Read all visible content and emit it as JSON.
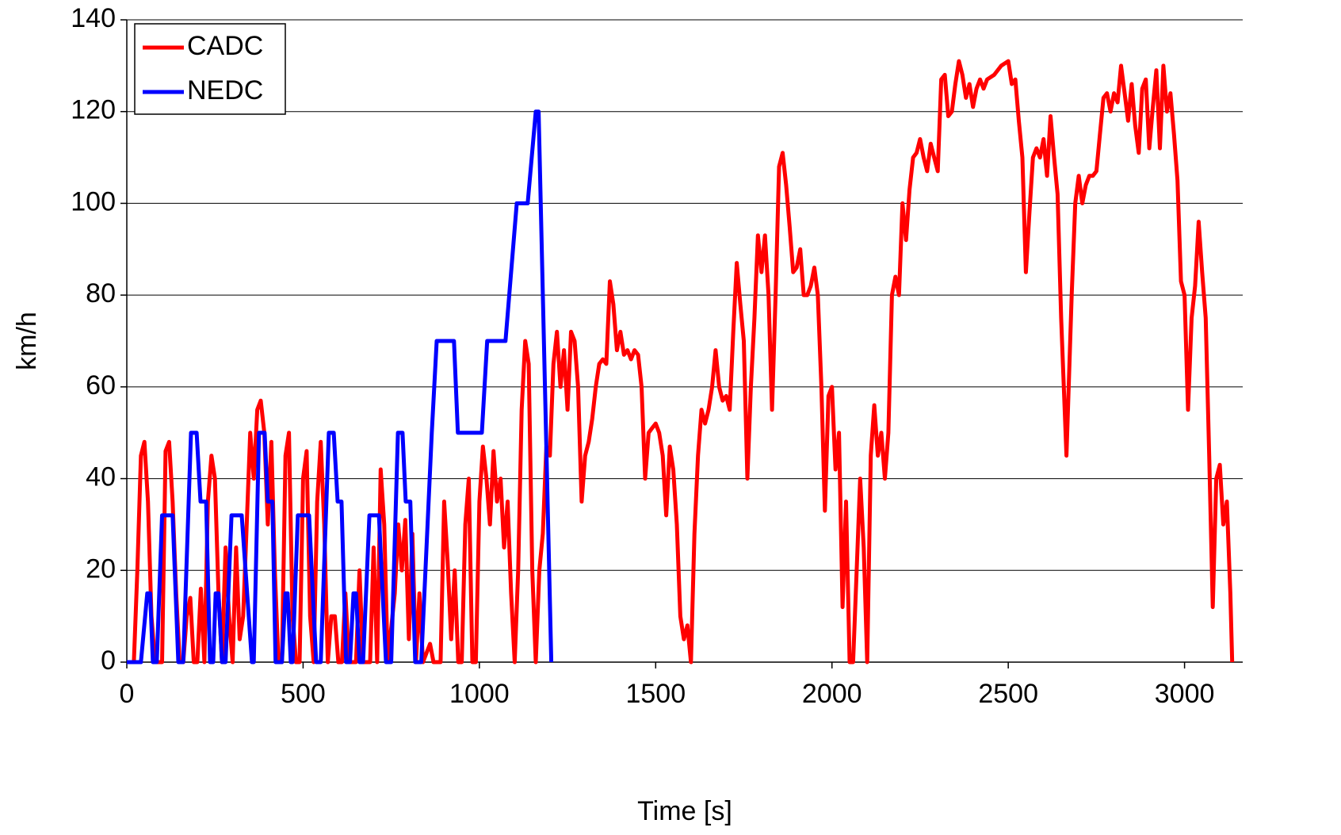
{
  "chart_data": {
    "type": "line",
    "xlabel": "Time [s]",
    "ylabel": "km/h",
    "xlim": [
      0,
      3165
    ],
    "xticks": [
      0,
      500,
      1000,
      1500,
      2000,
      2500,
      3000
    ],
    "ylim": [
      0,
      140
    ],
    "yticks": [
      0,
      20,
      40,
      60,
      80,
      100,
      120,
      140
    ],
    "grid": true,
    "legend": "upper left",
    "series": [
      {
        "name": "CADC",
        "color": "#ff0000",
        "x": [
          0,
          20,
          30,
          40,
          50,
          60,
          70,
          80,
          100,
          110,
          120,
          130,
          140,
          150,
          160,
          170,
          180,
          190,
          200,
          210,
          220,
          230,
          240,
          250,
          260,
          270,
          280,
          290,
          300,
          310,
          320,
          330,
          340,
          350,
          360,
          370,
          380,
          390,
          400,
          410,
          420,
          430,
          440,
          450,
          460,
          470,
          480,
          490,
          500,
          510,
          520,
          530,
          540,
          550,
          560,
          570,
          580,
          590,
          600,
          610,
          620,
          630,
          650,
          660,
          670,
          690,
          700,
          710,
          720,
          730,
          740,
          760,
          770,
          780,
          790,
          800,
          810,
          820,
          830,
          840,
          860,
          870,
          890,
          900,
          910,
          920,
          930,
          940,
          950,
          960,
          970,
          980,
          990,
          1000,
          1010,
          1020,
          1030,
          1040,
          1050,
          1060,
          1070,
          1080,
          1090,
          1100,
          1110,
          1120,
          1130,
          1140,
          1150,
          1160,
          1170,
          1180,
          1190,
          1200,
          1210,
          1220,
          1230,
          1240,
          1250,
          1260,
          1270,
          1280,
          1290,
          1300,
          1310,
          1320,
          1330,
          1340,
          1350,
          1360,
          1370,
          1380,
          1390,
          1400,
          1410,
          1420,
          1430,
          1440,
          1450,
          1460,
          1470,
          1480,
          1490,
          1500,
          1510,
          1520,
          1530,
          1540,
          1550,
          1560,
          1570,
          1580,
          1590,
          1600,
          1610,
          1620,
          1630,
          1640,
          1650,
          1660,
          1670,
          1680,
          1690,
          1700,
          1710,
          1720,
          1730,
          1740,
          1750,
          1760,
          1770,
          1780,
          1790,
          1800,
          1810,
          1820,
          1830,
          1840,
          1850,
          1860,
          1870,
          1880,
          1890,
          1900,
          1910,
          1920,
          1930,
          1940,
          1950,
          1960,
          1970,
          1980,
          1990,
          2000,
          2010,
          2020,
          2030,
          2040,
          2050,
          2060,
          2070,
          2080,
          2090,
          2100,
          2110,
          2120,
          2130,
          2140,
          2150,
          2160,
          2170,
          2180,
          2190,
          2200,
          2210,
          2220,
          2230,
          2240,
          2250,
          2260,
          2270,
          2280,
          2290,
          2300,
          2310,
          2320,
          2330,
          2340,
          2350,
          2360,
          2370,
          2380,
          2390,
          2400,
          2410,
          2420,
          2430,
          2440,
          2460,
          2480,
          2500,
          2510,
          2520,
          2530,
          2540,
          2550,
          2560,
          2570,
          2580,
          2590,
          2600,
          2610,
          2620,
          2630,
          2640,
          2650,
          2665,
          2680,
          2690,
          2700,
          2710,
          2720,
          2730,
          2740,
          2750,
          2760,
          2770,
          2780,
          2790,
          2800,
          2810,
          2820,
          2830,
          2840,
          2850,
          2860,
          2870,
          2880,
          2890,
          2900,
          2910,
          2920,
          2930,
          2940,
          2950,
          2960,
          2970,
          2980,
          2990,
          3000,
          3010,
          3020,
          3030,
          3040,
          3050,
          3060,
          3070,
          3080,
          3090,
          3100,
          3110,
          3120,
          3130,
          3135
        ],
        "values": [
          0,
          0,
          20,
          45,
          48,
          35,
          10,
          0,
          0,
          46,
          48,
          35,
          15,
          0,
          0,
          10,
          14,
          0,
          0,
          16,
          0,
          35,
          45,
          40,
          15,
          0,
          25,
          10,
          0,
          25,
          5,
          10,
          30,
          50,
          40,
          55,
          57,
          50,
          30,
          48,
          20,
          0,
          0,
          45,
          50,
          10,
          0,
          0,
          40,
          46,
          10,
          0,
          35,
          48,
          30,
          0,
          10,
          10,
          0,
          0,
          15,
          0,
          0,
          20,
          0,
          0,
          25,
          0,
          42,
          30,
          0,
          15,
          30,
          20,
          31,
          5,
          28,
          0,
          15,
          0,
          4,
          0,
          0,
          35,
          22,
          5,
          20,
          0,
          0,
          30,
          40,
          0,
          0,
          35,
          47,
          40,
          30,
          46,
          35,
          40,
          25,
          35,
          15,
          0,
          20,
          55,
          70,
          65,
          20,
          0,
          20,
          28,
          47,
          45,
          65,
          72,
          60,
          68,
          55,
          72,
          70,
          60,
          35,
          45,
          48,
          53,
          60,
          65,
          66,
          65,
          83,
          78,
          68,
          72,
          67,
          68,
          66,
          68,
          67,
          60,
          40,
          50,
          51,
          52,
          50,
          45,
          32,
          47,
          42,
          30,
          10,
          5,
          8,
          0,
          28,
          45,
          55,
          52,
          55,
          60,
          68,
          60,
          57,
          58,
          55,
          72,
          87,
          78,
          70,
          40,
          60,
          75,
          93,
          85,
          93,
          80,
          55,
          80,
          108,
          111,
          104,
          95,
          85,
          86,
          90,
          80,
          80,
          82,
          86,
          80,
          60,
          33,
          58,
          60,
          42,
          50,
          12,
          35,
          0,
          0,
          20,
          40,
          25,
          0,
          45,
          56,
          45,
          50,
          40,
          50,
          80,
          84,
          80,
          100,
          92,
          103,
          110,
          111,
          114,
          110,
          107,
          113,
          110,
          107,
          127,
          128,
          119,
          120,
          126,
          131,
          128,
          123,
          126,
          121,
          125,
          127,
          125,
          127,
          128,
          130,
          131,
          126,
          127,
          118,
          110,
          85,
          98,
          110,
          112,
          110,
          114,
          106,
          119,
          110,
          102,
          75,
          45,
          80,
          100,
          106,
          100,
          104,
          106,
          106,
          107,
          115,
          123,
          124,
          120,
          124,
          122,
          130,
          124,
          118,
          126,
          117,
          111,
          125,
          127,
          112,
          121,
          129,
          112,
          130,
          120,
          124,
          115,
          105,
          83,
          80,
          55,
          75,
          82,
          96,
          85,
          75,
          45,
          12,
          40,
          43,
          30,
          35,
          15,
          0
        ]
      },
      {
        "name": "NEDC",
        "color": "#0000ff",
        "x": [
          0,
          40,
          58,
          66,
          74,
          85,
          100,
          130,
          146,
          160,
          182,
          198,
          209,
          225,
          236,
          245,
          252,
          260,
          270,
          280,
          297,
          326,
          355,
          360,
          375,
          391,
          400,
          413,
          422,
          440,
          450,
          456,
          465,
          470,
          485,
          517,
          537,
          550,
          573,
          587,
          598,
          609,
          622,
          633,
          643,
          650,
          660,
          670,
          688,
          715,
          735,
          750,
          769,
          782,
          791,
          804,
          818,
          835,
          865,
          879,
          928,
          939,
          1007,
          1022,
          1074,
          1106,
          1137,
          1160,
          1168,
          1204
        ],
        "values": [
          0,
          0,
          15,
          15,
          0,
          0,
          32,
          32,
          0,
          0,
          50,
          50,
          35,
          35,
          0,
          0,
          15,
          15,
          0,
          0,
          32,
          32,
          0,
          0,
          50,
          50,
          35,
          35,
          0,
          0,
          15,
          15,
          0,
          0,
          32,
          32,
          0,
          0,
          50,
          50,
          35,
          35,
          0,
          0,
          15,
          15,
          0,
          0,
          32,
          32,
          0,
          0,
          50,
          50,
          35,
          35,
          0,
          0,
          50,
          70,
          70,
          50,
          50,
          70,
          70,
          100,
          100,
          120,
          120,
          0
        ]
      }
    ]
  }
}
